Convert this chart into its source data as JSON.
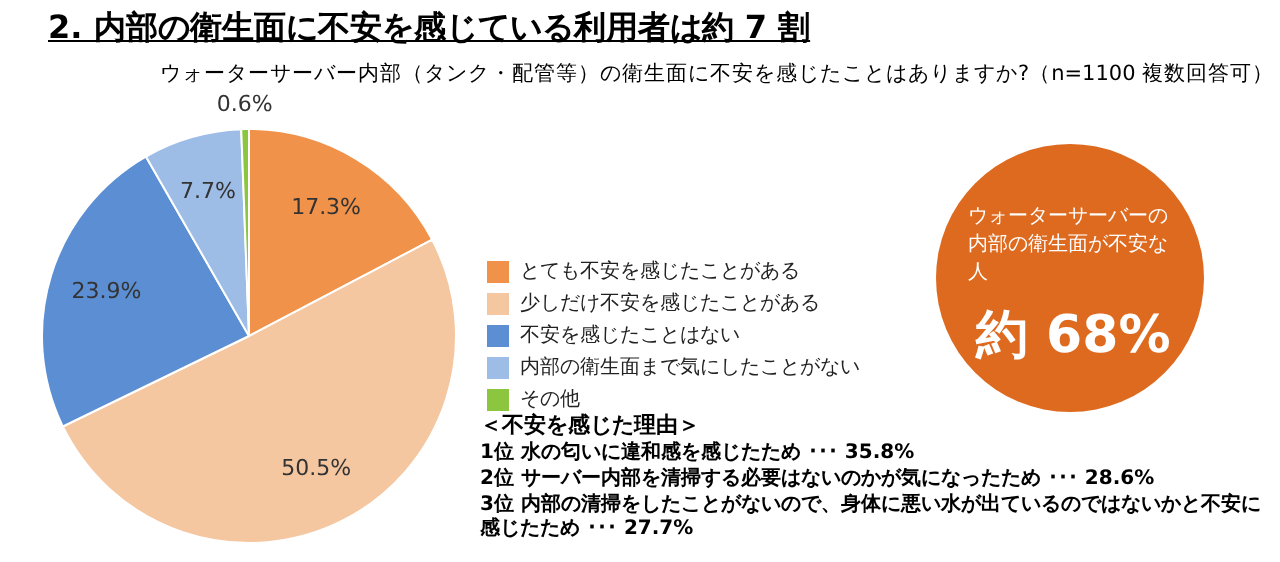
{
  "chart_data": {
    "type": "pie",
    "title": "2. 内部の衛生面に不安を感じている利用者は約 7 割",
    "subtitle": "ウォーターサーバー内部（タンク・配管等）の衛生面に不安を感じたことはありますか?（n=1100  複数回答可）",
    "categories": [
      "とても不安を感じたことがある",
      "少しだけ不安を感じたことがある",
      "不安を感じたことはない",
      "内部の衛生面まで気にしたことがない",
      "その他"
    ],
    "values": [
      17.3,
      50.5,
      23.9,
      7.7,
      0.6
    ],
    "colors": [
      "#f0924a",
      "#f5c7a0",
      "#5b8ed2",
      "#9dbde6",
      "#8cc63f"
    ],
    "value_labels": [
      "17.3%",
      "50.5%",
      "23.9%",
      "7.7%",
      "0.6%"
    ],
    "legend": "right",
    "annotations": [
      "ウォーターサーバーの内部の衛生面が不安な人",
      "約 68%",
      "＜不安を感じた理由＞",
      "1位  水の匂いに違和感を感じたため ･･･ 35.8%",
      "2位  サーバー内部を清掃する必要はないのかが気になったため ･･･ 28.6%",
      "3位  内部の清掃をしたことがないので、身体に悪い水が出ているのではないかと不安に感じたため ･･･ 27.7%"
    ]
  }
}
